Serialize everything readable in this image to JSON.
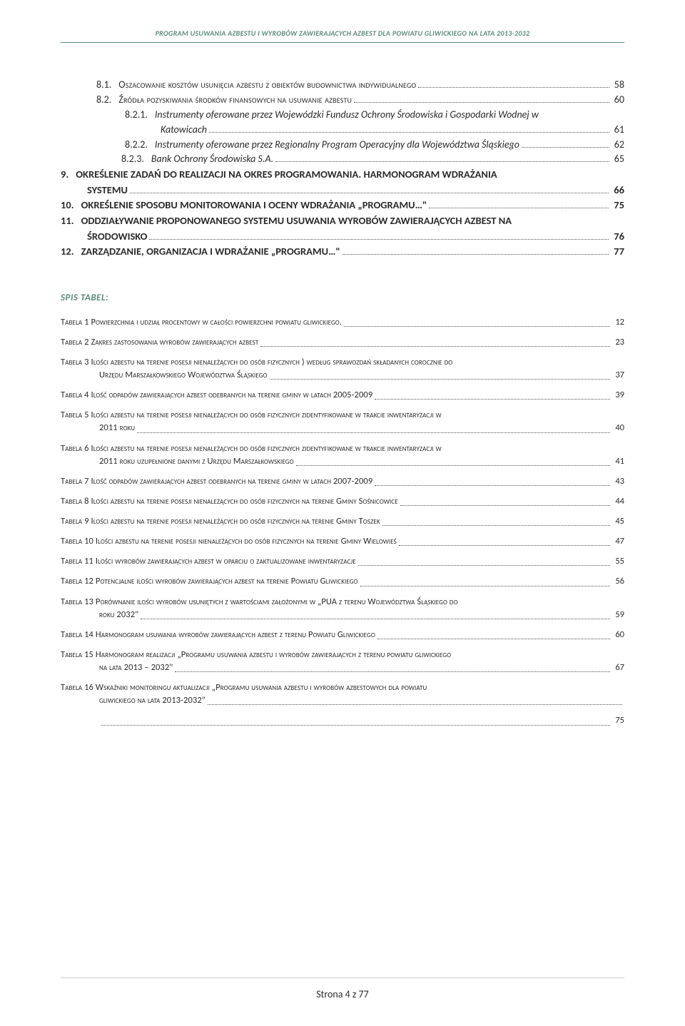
{
  "header": "PROGRAM USUWANIA AZBESTU I WYROBÓW ZAWIERAJĄCYCH AZBEST DLA POWIATU GLIWICKIEGO NA LATA 2013-2032",
  "toc": [
    {
      "indent": "ind-1",
      "num": "8.1.",
      "text": "Oszacowanie kosztów usunięcia azbestu z obiektów budownictwa indywidualnego",
      "page": "58",
      "sc": true
    },
    {
      "indent": "ind-1",
      "num": "8.2.",
      "text": "Źródła pozyskiwania środków finansowych na usuwanie azbestu",
      "page": "60",
      "sc": true
    },
    {
      "indent": "ind-2",
      "num": "8.2.1.",
      "text": "Instrumenty oferowane przez Wojewódzki Fundusz Ochrony Środowiska i Gospodarki Wodnej w",
      "page": "",
      "ital": true,
      "nolead": true
    },
    {
      "indent": "ind-cont",
      "num": "",
      "text": "Katowicach",
      "page": "61",
      "ital": true
    },
    {
      "indent": "ind-2",
      "num": "8.2.2.",
      "text": "Instrumenty oferowane przez Regionalny Program Operacyjny dla Województwa Śląskiego",
      "page": "62",
      "ital": true
    },
    {
      "indent": "ind-2b",
      "num": "8.2.3.",
      "text": "Bank Ochrony Środowiska S.A.",
      "page": "65",
      "ital": true
    },
    {
      "indent": "",
      "num": "9.",
      "text": "OKREŚLENIE ZADAŃ DO REALIZACJI NA OKRES PROGRAMOWANIA. HARMONOGRAM WDRAŻANIA",
      "page": "",
      "bold": true,
      "nolead": true
    },
    {
      "indent": "",
      "num": "",
      "text": "SYSTEMU",
      "page": "66",
      "bold": true,
      "contpad": "37px"
    },
    {
      "indent": "",
      "num": "10.",
      "text": "OKREŚLENIE SPOSOBU MONITOROWANIA I OCENY WDRAŻANIA „PROGRAMU…\"",
      "page": "75",
      "bold": true
    },
    {
      "indent": "",
      "num": "11.",
      "text": "ODDZIAŁYWANIE PROPONOWANEGO SYSTEMU USUWANIA WYROBÓW ZAWIERAJĄCYCH AZBEST NA",
      "page": "",
      "bold": true,
      "nolead": true
    },
    {
      "indent": "",
      "num": "",
      "text": "ŚRODOWISKO",
      "page": "76",
      "bold": true,
      "contpad": "37px"
    },
    {
      "indent": "",
      "num": "12.",
      "text": "ZARZĄDZANIE, ORGANIZACJA I WDRAŻANIE „PROGRAMU…\"",
      "page": "77",
      "bold": true
    }
  ],
  "spisTabelHeading": "SPIS TABEL:",
  "tables": [
    {
      "text": "Tabela 1 Powierzchnia i udział procentowy w całości powierzchni powiatu gliwickiego.",
      "page": "12"
    },
    {
      "text": "Tabela 2 Zakres zastosowania wyrobów zawierających azbest",
      "page": "23"
    },
    {
      "text": "Tabela 3 Ilości azbestu na terenie posesji nienależących do osób fizycznych ) według sprawozdań składanych corocznie do",
      "cont": "Urzędu Marszałkowskiego Województwa Śląskiego",
      "page": "37"
    },
    {
      "text": "Tabela 4 Ilość odpadów zawierających azbest odebranych na terenie gminy w latach 2005-2009",
      "page": "39"
    },
    {
      "text": "Tabela 5 Ilości azbestu na terenie posesji nienależących do osób fizycznych zidentyfikowane w trakcie inwentaryzacji w",
      "cont": "2011 roku",
      "page": "40"
    },
    {
      "text": "Tabela 6 Ilości azbestu na terenie posesji nienależących do osób fizycznych zidentyfikowane w trakcie inwentaryzacji w",
      "cont": "2011 roku uzupełnione danymi z Urzędu Marszałkowskiego",
      "page": "41"
    },
    {
      "text": "Tabela 7 Ilość odpadów zawierających azbest odebranych na terenie gminy w latach 2007-2009",
      "page": "43"
    },
    {
      "text": "Tabela 8 Ilości azbestu na terenie posesji nienależących do osób fizycznych na terenie Gminy Sośnicowice",
      "page": "44"
    },
    {
      "text": "Tabela 9 Ilości azbestu na terenie posesji nienależących do osób fizycznych na terenie Gminy Toszek",
      "page": "45"
    },
    {
      "text": "Tabela 10 Ilości azbestu na terenie posesji nienależących do osób fizycznych na terenie Gminy Wielowieś",
      "page": "47"
    },
    {
      "text": "Tabela 11 Ilości wyrobów zawierających azbest w oparciu o zaktualizowane inwentaryzacje",
      "page": "55"
    },
    {
      "text": "Tabela 12 Potencjalne ilości wyrobów zawierających azbest na terenie Powiatu Gliwickiego",
      "page": "56"
    },
    {
      "text": "Tabela 13 Porównanie ilości wyrobów usuniętych z wartościami założonymi w „PUA z terenu Województwa Śląskiego do",
      "cont": "roku 2032\"",
      "page": "59"
    },
    {
      "text": "Tabela 14 Harmonogram usuwania wyrobów zawierających azbest z terenu Powiatu Gliwickiego",
      "page": "60"
    },
    {
      "text": "Tabela 15 Harmonogram realizacji „Programu usuwania azbestu i wyrobów zawierających z terenu powiatu gliwickiego",
      "cont": "na lata 2013 – 2032\"",
      "page": "67"
    },
    {
      "text": "Tabela 16 Wskaźniki monitoringu aktualizacji „Programu usuwania azbestu i wyrobów azbestowych dla powiatu",
      "cont": "gliwickiego na lata 2013-2032\"",
      "extradots": true,
      "page": "75"
    }
  ],
  "footer": "Strona 4 z 77"
}
